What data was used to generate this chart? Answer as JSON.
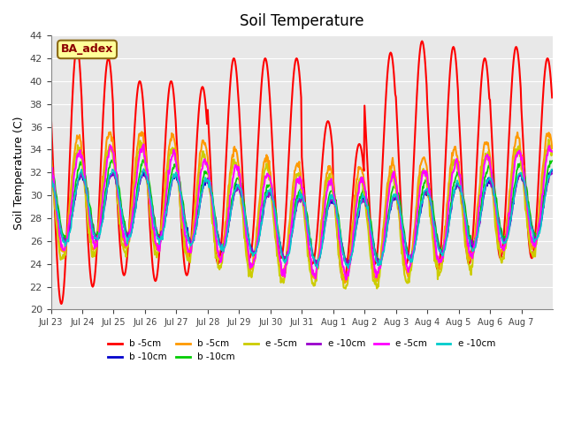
{
  "title": "Soil Temperature",
  "ylabel": "Soil Temperature (C)",
  "xlabel": "",
  "annotation_text": "BA_adex",
  "ylim": [
    20,
    44
  ],
  "background_color": "#e8e8e8",
  "series": [
    {
      "label": "b -5cm",
      "color": "#ff0000",
      "lw": 1.5
    },
    {
      "label": "b -10cm",
      "color": "#0000cc",
      "lw": 1.2
    },
    {
      "label": "b -5cm",
      "color": "#ff9900",
      "lw": 1.5
    },
    {
      "label": "b -10cm",
      "color": "#00cc00",
      "lw": 1.2
    },
    {
      "label": "e -5cm",
      "color": "#cccc00",
      "lw": 1.5
    },
    {
      "label": "e -10cm",
      "color": "#9900cc",
      "lw": 1.2
    },
    {
      "label": "e -5cm",
      "color": "#ff00ff",
      "lw": 1.5
    },
    {
      "label": "e -10cm",
      "color": "#00cccc",
      "lw": 1.2
    }
  ],
  "xtick_labels": [
    "Jul 23",
    "Jul 24",
    "Jul 25",
    "Jul 26",
    "Jul 27",
    "Jul 28",
    "Jul 29",
    "Jul 30",
    "Jul 31",
    "Aug 1",
    "Aug 2",
    "Aug 3",
    "Aug 4",
    "Aug 5",
    "Aug 6",
    "Aug 7"
  ],
  "n_days": 16,
  "red_peaks": [
    43.0,
    42.0,
    40.0,
    40.0,
    39.5,
    42.0,
    42.0,
    42.0,
    36.5,
    34.5,
    42.5,
    43.5,
    43.0,
    42.0,
    43.0,
    42.0
  ],
  "red_valleys": [
    20.5,
    22.0,
    23.0,
    22.5,
    23.0,
    24.0,
    24.5,
    24.5,
    24.0,
    22.5,
    24.0,
    24.0,
    23.5,
    24.0,
    24.5,
    24.5
  ]
}
